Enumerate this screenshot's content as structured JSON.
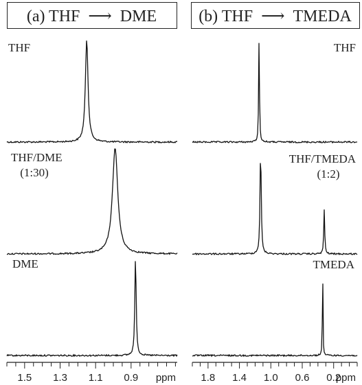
{
  "chart_data": [
    {
      "type": "line",
      "title": "(a) THF → DME",
      "xlabel": "ppm",
      "xlim": [
        1.6,
        0.64
      ],
      "x_reversed": true,
      "ticks_labeled": [
        "1.5",
        "1.3",
        "1.1",
        "0.9"
      ],
      "minor_tick_step": 0.05,
      "series": [
        {
          "name": "THF",
          "label": [
            "THF"
          ],
          "peaks": [
            {
              "x": 1.15,
              "height": 1.0,
              "width": 0.009
            }
          ]
        },
        {
          "name": "THF/DME (1:30)",
          "label": [
            "THF/DME",
            "(1:30)"
          ],
          "peaks": [
            {
              "x": 0.99,
              "height": 1.0,
              "width": 0.018
            }
          ]
        },
        {
          "name": "DME",
          "label": [
            "DME"
          ],
          "peaks": [
            {
              "x": 0.875,
              "height": 1.0,
              "width": 0.0045
            }
          ]
        }
      ]
    },
    {
      "type": "line",
      "title": "(b) THF → TMEDA",
      "xlabel": "ppm",
      "xlim": [
        2.0,
        -0.1
      ],
      "x_reversed": true,
      "ticks_labeled": [
        "1.8",
        "1.4",
        "1.0",
        "0.6",
        "0.2"
      ],
      "minor_tick_step": 0.1,
      "series": [
        {
          "name": "THF",
          "label": [
            "THF"
          ],
          "peaks": [
            {
              "x": 1.15,
              "height": 1.0,
              "width": 0.006
            }
          ]
        },
        {
          "name": "THF/TMEDA (1:2)",
          "label": [
            "THF/TMEDA",
            "(1:2)"
          ],
          "peaks": [
            {
              "x": 1.13,
              "height": 1.0,
              "width": 0.009
            },
            {
              "x": 0.32,
              "height": 0.42,
              "width": 0.007
            }
          ]
        },
        {
          "name": "TMEDA",
          "label": [
            "TMEDA"
          ],
          "peaks": [
            {
              "x": 0.34,
              "height": 1.0,
              "width": 0.004
            }
          ]
        }
      ]
    }
  ]
}
